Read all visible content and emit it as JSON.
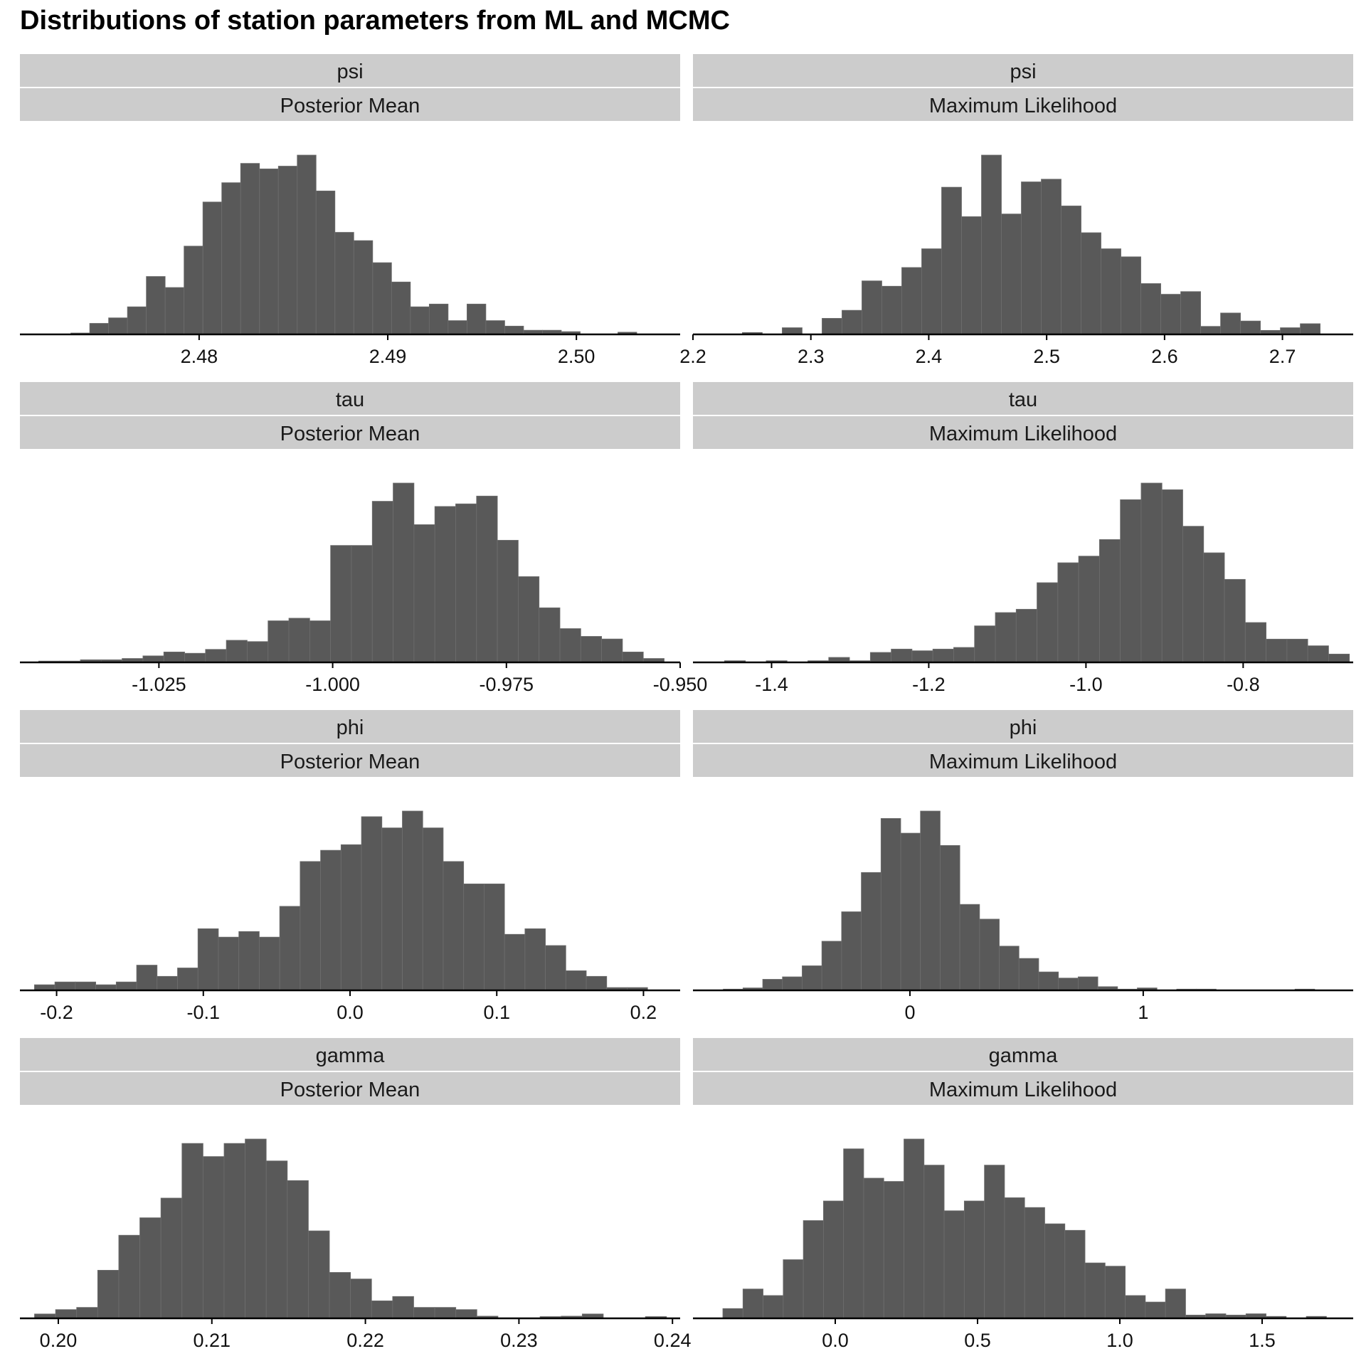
{
  "title": "Distributions of station parameters from ML and MCMC",
  "colors": {
    "bar": "#595959",
    "strip": "#cccccc",
    "background": "#ffffff"
  },
  "chart_data": [
    {
      "type": "bar",
      "param": "psi",
      "method": "Posterior Mean",
      "xlim": [
        2.4705,
        2.5055
      ],
      "ticks": [
        2.48,
        2.49,
        2.5
      ],
      "tick_labels": [
        "2.48",
        "2.49",
        "2.50"
      ],
      "bin_start": 2.4732,
      "bin_width": 0.001,
      "counts": [
        0.5,
        4,
        6,
        10,
        21,
        17,
        32,
        48,
        55,
        62,
        60,
        61,
        65,
        52,
        37,
        34,
        26,
        19,
        10,
        11,
        5,
        11,
        5,
        3,
        1.5,
        1.5,
        1,
        0,
        0,
        0.8
      ]
    },
    {
      "type": "bar",
      "param": "psi",
      "method": "Maximum Likelihood",
      "xlim": [
        2.2,
        2.76
      ],
      "ticks": [
        2.2,
        2.3,
        2.4,
        2.5,
        2.6,
        2.7
      ],
      "tick_labels": [
        "2.2",
        "2.3",
        "2.4",
        "2.5",
        "2.6",
        "2.7"
      ],
      "bin_start": 2.225,
      "bin_width": 0.0169,
      "counts": [
        0,
        0.7,
        0,
        2.5,
        0,
        6,
        9,
        20,
        18,
        25,
        32,
        55,
        44,
        67,
        45,
        57,
        58,
        48,
        38,
        32,
        29,
        19,
        15,
        16,
        3,
        8,
        5,
        1.5,
        2.5,
        4
      ]
    },
    {
      "type": "bar",
      "param": "tau",
      "method": "Posterior Mean",
      "xlim": [
        -1.045,
        -0.95
      ],
      "ticks": [
        -1.025,
        -1.0,
        -0.975,
        -0.95
      ],
      "tick_labels": [
        "-1.025",
        "-1.000",
        "-0.975",
        "-0.950"
      ],
      "bin_start": -1.0423,
      "bin_width": 0.003,
      "counts": [
        0.5,
        0.5,
        1,
        1,
        1.5,
        2.5,
        4,
        3.5,
        5,
        8.5,
        8,
        16,
        17,
        16,
        45,
        45,
        62,
        69,
        53,
        60,
        61,
        64,
        47,
        33,
        21,
        13,
        10,
        9,
        4,
        1.5
      ]
    },
    {
      "type": "bar",
      "param": "tau",
      "method": "Maximum Likelihood",
      "xlim": [
        -1.5,
        -0.66
      ],
      "ticks": [
        -1.4,
        -1.2,
        -1.0,
        -0.8
      ],
      "tick_labels": [
        "-1.4",
        "-1.2",
        "-1.0",
        "-0.8"
      ],
      "bin_start": -1.4598,
      "bin_width": 0.0265,
      "counts": [
        0.5,
        0,
        0.5,
        0,
        0.5,
        1.5,
        0.5,
        3,
        4,
        3.5,
        4,
        4.5,
        11,
        15,
        16,
        24,
        30,
        32,
        37,
        49,
        54,
        52,
        41,
        33,
        25,
        12,
        7,
        7,
        5,
        2.5
      ]
    },
    {
      "type": "bar",
      "param": "phi",
      "method": "Posterior Mean",
      "xlim": [
        -0.225,
        0.225
      ],
      "ticks": [
        -0.2,
        -0.1,
        0.0,
        0.1,
        0.2
      ],
      "tick_labels": [
        "-0.2",
        "-0.1",
        "0.0",
        "0.1",
        "0.2"
      ],
      "bin_start": -0.2151,
      "bin_width": 0.01393,
      "counts": [
        1,
        1.5,
        1.5,
        1,
        1.5,
        4.5,
        2.5,
        4,
        11,
        9.5,
        10.5,
        9.5,
        15,
        23,
        25,
        26,
        31,
        29,
        32,
        29,
        23,
        19,
        19,
        10,
        11,
        8,
        3.5,
        2.5,
        0.5,
        0.5
      ]
    },
    {
      "type": "bar",
      "param": "phi",
      "method": "Maximum Likelihood",
      "xlim": [
        -0.93,
        1.9
      ],
      "ticks": [
        0,
        1
      ],
      "tick_labels": [
        "0",
        "1"
      ],
      "bin_start": -0.8,
      "bin_width": 0.0845,
      "counts": [
        0.5,
        1,
        4.5,
        5.5,
        10,
        20,
        32,
        48,
        70,
        64,
        73,
        59,
        35,
        29,
        18,
        13,
        7.5,
        5,
        5.5,
        1.5,
        0.5,
        1,
        0,
        0.5,
        0.5,
        0,
        0,
        0,
        0,
        0.5
      ]
    },
    {
      "type": "bar",
      "param": "gamma",
      "method": "Posterior Mean",
      "xlim": [
        0.1975,
        0.2405
      ],
      "ticks": [
        0.2,
        0.21,
        0.22,
        0.23,
        0.24
      ],
      "tick_labels": [
        "0.20",
        "0.21",
        "0.22",
        "0.23",
        "0.24"
      ],
      "bin_start": 0.19845,
      "bin_width": 0.001372,
      "counts": [
        1,
        2,
        2.5,
        11,
        19,
        23,
        27.5,
        40,
        37,
        40,
        41,
        36,
        31.5,
        20,
        10.5,
        9,
        4,
        5,
        2.5,
        2.5,
        2,
        0.5,
        0,
        0,
        0.4,
        0.5,
        1,
        0,
        0,
        0.4
      ]
    },
    {
      "type": "bar",
      "param": "gamma",
      "method": "Maximum Likelihood",
      "xlim": [
        -0.5,
        1.82
      ],
      "ticks": [
        0.0,
        0.5,
        1.0,
        1.5
      ],
      "tick_labels": [
        "0.0",
        "0.5",
        "1.0",
        "1.5"
      ],
      "bin_start": -0.395,
      "bin_width": 0.0707,
      "counts": [
        1.5,
        4.5,
        3.5,
        9,
        15,
        18,
        26,
        21.5,
        21,
        27.5,
        23.5,
        16.5,
        18,
        23.5,
        18.5,
        17,
        14.5,
        13.5,
        8.5,
        8,
        3.5,
        2.5,
        4.5,
        0.5,
        0.7,
        0.5,
        0.7,
        0.3,
        0,
        0.3
      ]
    }
  ]
}
